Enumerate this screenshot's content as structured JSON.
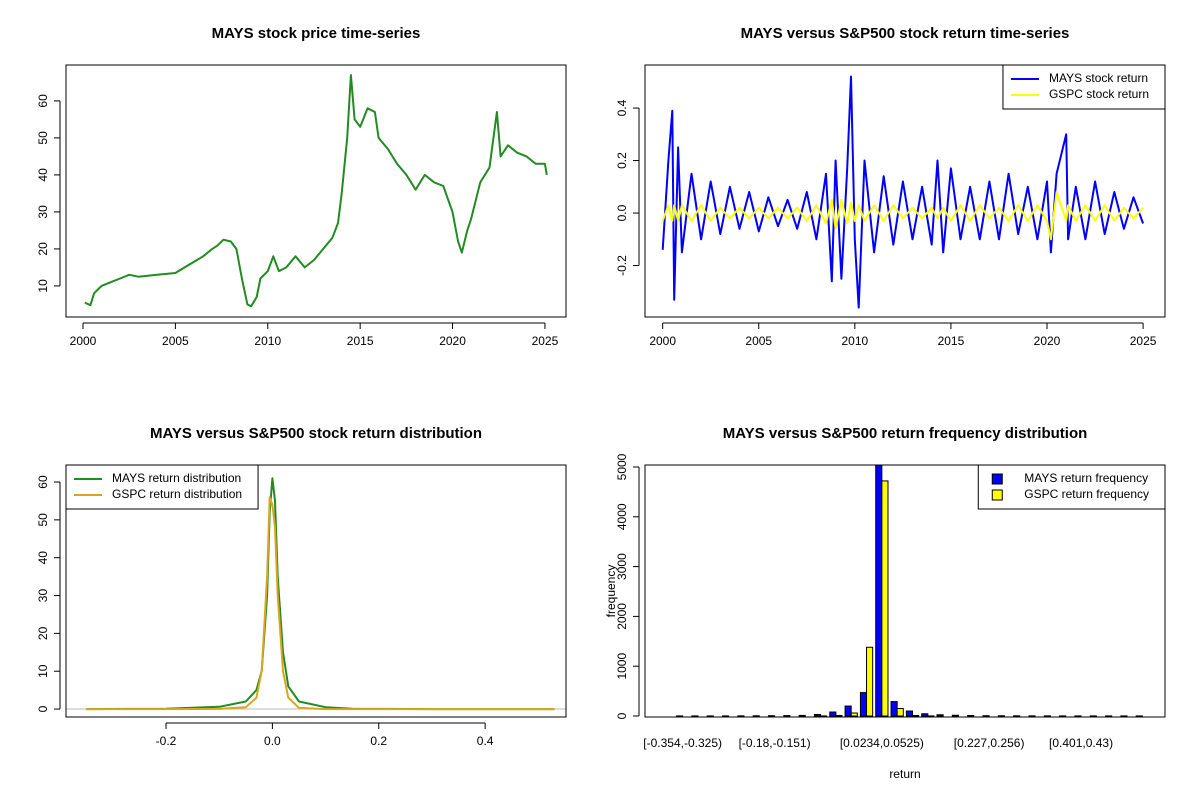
{
  "chart_data": [
    {
      "type": "line",
      "title": "MAYS stock price time-series",
      "x": [
        2000.1,
        2000.4,
        2000.6,
        2000.8,
        2001,
        2001.5,
        2002,
        2002.5,
        2003,
        2004,
        2005,
        2005.5,
        2006,
        2006.5,
        2007,
        2007.3,
        2007.6,
        2008,
        2008.3,
        2008.6,
        2008.9,
        2009.1,
        2009.4,
        2009.6,
        2010,
        2010.3,
        2010.6,
        2011,
        2011.5,
        2012,
        2012.5,
        2013,
        2013.5,
        2013.8,
        2014,
        2014.3,
        2014.5,
        2014.7,
        2015,
        2015.4,
        2015.8,
        2016,
        2016.5,
        2017,
        2017.5,
        2018,
        2018.5,
        2019,
        2019.5,
        2020,
        2020.3,
        2020.5,
        2020.8,
        2021,
        2021.5,
        2022,
        2022.4,
        2022.6,
        2023,
        2023.5,
        2024,
        2024.5,
        2025,
        2025.1
      ],
      "series": [
        {
          "name": "MAYS",
          "color": "#228b22",
          "values": [
            5.5,
            4.8,
            8,
            9,
            10,
            11,
            12,
            13,
            12.5,
            13,
            13.5,
            15,
            16.5,
            18,
            20,
            21,
            22.5,
            22,
            20,
            12,
            5,
            4.5,
            7,
            12,
            14,
            18,
            14,
            15,
            18,
            15,
            17,
            20,
            23,
            27,
            35,
            50,
            67,
            55,
            53,
            58,
            57,
            50,
            47,
            43,
            40,
            36,
            40,
            38,
            37,
            30,
            22,
            19,
            25,
            28,
            38,
            42,
            57,
            45,
            48,
            46,
            45,
            43,
            43,
            40
          ]
        }
      ],
      "xlim": [
        1999.08,
        2026.14
      ],
      "xticks": [
        2000,
        2005,
        2010,
        2015,
        2020,
        2025
      ],
      "ylim": [
        1.6,
        69.7
      ],
      "yticks": [
        10,
        20,
        30,
        40,
        50,
        60
      ]
    },
    {
      "type": "line",
      "title": "MAYS versus S&P500 stock return time-series",
      "x": [
        2000,
        2000.3,
        2000.5,
        2000.6,
        2000.8,
        2001,
        2001.5,
        2002,
        2002.5,
        2003,
        2003.5,
        2004,
        2004.5,
        2005,
        2005.5,
        2006,
        2006.5,
        2007,
        2007.5,
        2008,
        2008.5,
        2008.8,
        2009,
        2009.3,
        2009.6,
        2009.8,
        2010,
        2010.2,
        2010.5,
        2011,
        2011.5,
        2012,
        2012.5,
        2013,
        2013.5,
        2014,
        2014.3,
        2014.6,
        2015,
        2015.5,
        2016,
        2016.5,
        2017,
        2017.5,
        2018,
        2018.5,
        2019,
        2019.5,
        2020,
        2020.2,
        2020.5,
        2021,
        2021.1,
        2021.5,
        2022,
        2022.5,
        2023,
        2023.5,
        2024,
        2024.5,
        2025
      ],
      "series": [
        {
          "name": "MAYS stock return",
          "color": "#0000ff",
          "values": [
            -0.14,
            0.2,
            0.39,
            -0.33,
            0.25,
            -0.15,
            0.15,
            -0.1,
            0.12,
            -0.08,
            0.1,
            -0.06,
            0.08,
            -0.07,
            0.06,
            -0.05,
            0.05,
            -0.06,
            0.08,
            -0.1,
            0.15,
            -0.26,
            0.2,
            -0.25,
            0.17,
            0.52,
            -0.1,
            -0.36,
            0.2,
            -0.15,
            0.14,
            -0.12,
            0.12,
            -0.1,
            0.1,
            -0.12,
            0.2,
            -0.15,
            0.17,
            -0.1,
            0.1,
            -0.1,
            0.12,
            -0.1,
            0.15,
            -0.08,
            0.1,
            -0.1,
            0.12,
            -0.15,
            0.15,
            0.3,
            -0.1,
            0.1,
            -0.1,
            0.12,
            -0.08,
            0.08,
            -0.06,
            0.06,
            -0.04
          ]
        },
        {
          "name": "GSPC stock return",
          "color": "#ffff00",
          "values": [
            -0.03,
            0.03,
            -0.03,
            0.03,
            -0.03,
            0.03,
            -0.03,
            0.03,
            -0.03,
            0.02,
            -0.02,
            0.02,
            -0.02,
            0.02,
            -0.02,
            0.02,
            -0.02,
            0.02,
            -0.03,
            0.03,
            -0.04,
            0.05,
            -0.06,
            0.05,
            -0.04,
            0.04,
            -0.03,
            0.03,
            -0.03,
            0.03,
            -0.03,
            0.03,
            -0.02,
            0.02,
            -0.02,
            0.02,
            -0.02,
            0.02,
            -0.03,
            0.03,
            -0.03,
            0.03,
            -0.02,
            0.02,
            -0.03,
            0.03,
            -0.03,
            0.03,
            -0.03,
            -0.1,
            0.08,
            -0.03,
            0.03,
            -0.03,
            0.03,
            -0.03,
            0.03,
            -0.03,
            0.02,
            -0.02,
            0.02
          ]
        }
      ],
      "xlim": [
        1999.08,
        2026.14
      ],
      "xticks": [
        2000,
        2005,
        2010,
        2015,
        2020,
        2025
      ],
      "ylim": [
        -0.396,
        0.564
      ],
      "yticks": [
        -0.2,
        {
          "value": 0,
          "label": "0.0"
        },
        0.2,
        0.4
      ],
      "legend": "topright"
    },
    {
      "type": "line",
      "title": "MAYS versus S&P500 stock return distribution",
      "x": [
        -0.35,
        -0.2,
        -0.1,
        -0.05,
        -0.03,
        -0.02,
        -0.01,
        -0.005,
        0,
        0.005,
        0.01,
        0.02,
        0.03,
        0.05,
        0.1,
        0.15,
        0.3,
        0.53
      ],
      "series": [
        {
          "name": "MAYS return distribution",
          "color": "#228b22",
          "values": [
            0,
            0.1,
            0.6,
            2,
            5,
            10,
            30,
            52,
            61,
            55,
            35,
            15,
            6,
            2,
            0.5,
            0.1,
            0,
            0
          ]
        },
        {
          "name": "GSPC return distribution",
          "color": "#daa520",
          "values": [
            0,
            0,
            0.05,
            0.5,
            3,
            10,
            35,
            56,
            54,
            48,
            30,
            10,
            3,
            0.3,
            0,
            0,
            0,
            0
          ]
        }
      ],
      "xlim": [
        -0.388,
        0.552
      ],
      "xticks": [
        -0.2,
        {
          "value": 0,
          "label": "0.0"
        },
        0.2,
        0.4
      ],
      "ylim": [
        -2.1,
        64.5
      ],
      "yticks": [
        0,
        10,
        20,
        30,
        40,
        50,
        60
      ],
      "legend": "topleft"
    },
    {
      "type": "bar",
      "title": "MAYS versus S&P500 return frequency distribution",
      "x_label": "return",
      "y_label": "frequency",
      "categories": [
        "[-0.354,-0.325)",
        null,
        null,
        null,
        null,
        null,
        "[-0.18,-0.151)",
        null,
        null,
        null,
        null,
        null,
        null,
        "[0.0234,0.0525)",
        null,
        null,
        null,
        null,
        null,
        null,
        "[0.227,0.256)",
        null,
        null,
        null,
        null,
        null,
        "[0.401,0.43)",
        null,
        null,
        null,
        null
      ],
      "series": [
        {
          "name": "MAYS return frequency",
          "color": "#0000ff",
          "values": [
            2,
            2,
            2,
            2,
            3,
            5,
            6,
            8,
            12,
            30,
            80,
            200,
            470,
            5040,
            290,
            100,
            45,
            25,
            15,
            10,
            6,
            5,
            4,
            3,
            3,
            2,
            2,
            2,
            2,
            2,
            2
          ]
        },
        {
          "name": "GSPC return frequency",
          "color": "#ffff00",
          "values": [
            0,
            0,
            0,
            0,
            0,
            0,
            0,
            0,
            0,
            2,
            10,
            60,
            1380,
            4720,
            150,
            10,
            2,
            0,
            0,
            0,
            0,
            0,
            0,
            0,
            0,
            0,
            0,
            0,
            0,
            0,
            0
          ]
        }
      ],
      "ylim": [
        -20,
        5040
      ],
      "yticks": [
        0,
        1000,
        2000,
        3000,
        4000,
        5000
      ],
      "legend": "topright"
    }
  ]
}
